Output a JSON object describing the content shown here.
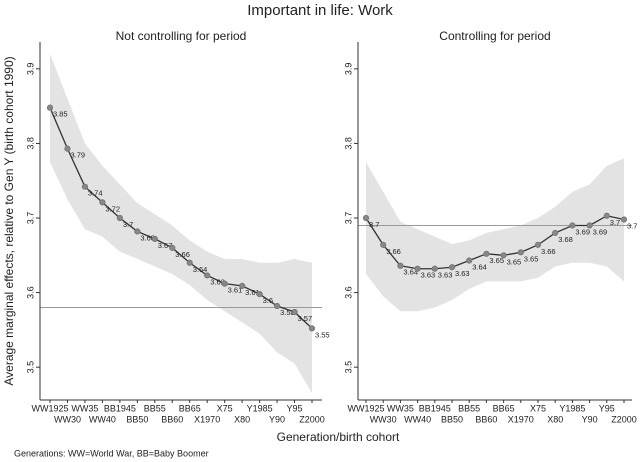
{
  "title": "Important in life: Work",
  "ylabel": "Average marginal effects, relative to Gen Y (birth cohort 1990)",
  "xlabel": "Generation/birth cohort",
  "note": "Generations: WW=World War, BB=Baby Boomer",
  "chart_data": [
    {
      "type": "line",
      "title": "Not controlling for period",
      "categories": [
        "WW1925",
        "WW30",
        "WW35",
        "WW40",
        "BB1945",
        "BB50",
        "BB55",
        "BB60",
        "BB65",
        "X1970",
        "X75",
        "X80",
        "Y1985",
        "Y90",
        "Y95",
        "Z2000"
      ],
      "ylim": [
        3.456,
        3.936
      ],
      "yticks": [
        3.5,
        3.6,
        3.7,
        3.8,
        3.9
      ],
      "reference_line": 3.58,
      "series": [
        {
          "color": "#333333",
          "values": [
            3.848,
            3.793,
            3.742,
            3.721,
            3.7,
            3.682,
            3.672,
            3.66,
            3.64,
            3.623,
            3.612,
            3.609,
            3.598,
            3.582,
            3.574,
            3.552
          ],
          "value_labels": [
            "3.85",
            "3.79",
            "3.74",
            "3.72",
            "3.7",
            "3.68",
            "3.67",
            "3.66",
            "3.64",
            "3.62",
            "3.61",
            "3.61",
            "3.6",
            "3.58",
            "3.57",
            "3.55"
          ],
          "upper": [
            3.92,
            3.86,
            3.8,
            3.77,
            3.745,
            3.72,
            3.705,
            3.69,
            3.67,
            3.655,
            3.645,
            3.645,
            3.64,
            3.64,
            3.645,
            3.64
          ],
          "lower": [
            3.775,
            3.725,
            3.685,
            3.675,
            3.655,
            3.645,
            3.635,
            3.625,
            3.61,
            3.59,
            3.575,
            3.56,
            3.545,
            3.52,
            3.505,
            3.465
          ]
        }
      ]
    },
    {
      "type": "line",
      "title": "Controlling for period",
      "categories": [
        "WW1925",
        "WW30",
        "WW35",
        "WW40",
        "BB1945",
        "BB50",
        "BB55",
        "BB60",
        "BB65",
        "X1970",
        "X75",
        "X80",
        "Y1985",
        "Y90",
        "Y95",
        "Z2000"
      ],
      "ylim": [
        3.456,
        3.936
      ],
      "yticks": [
        3.5,
        3.6,
        3.7,
        3.8,
        3.9
      ],
      "reference_line": 3.69,
      "series": [
        {
          "color": "#333333",
          "values": [
            3.7,
            3.664,
            3.636,
            3.632,
            3.632,
            3.634,
            3.643,
            3.652,
            3.65,
            3.654,
            3.664,
            3.68,
            3.69,
            3.69,
            3.703,
            3.698
          ],
          "value_labels": [
            "3.7",
            "3.66",
            "3.64",
            "3.63",
            "3.63",
            "3.63",
            "3.64",
            "3.65",
            "3.65",
            "3.65",
            "3.66",
            "3.68",
            "3.69",
            "3.69",
            "3.7",
            "3.7"
          ],
          "upper": [
            3.775,
            3.735,
            3.695,
            3.685,
            3.675,
            3.665,
            3.67,
            3.68,
            3.685,
            3.69,
            3.7,
            3.715,
            3.735,
            3.745,
            3.77,
            3.78
          ],
          "lower": [
            3.625,
            3.595,
            3.575,
            3.575,
            3.58,
            3.59,
            3.605,
            3.615,
            3.615,
            3.615,
            3.62,
            3.635,
            3.64,
            3.64,
            3.635,
            3.615
          ]
        }
      ]
    }
  ]
}
